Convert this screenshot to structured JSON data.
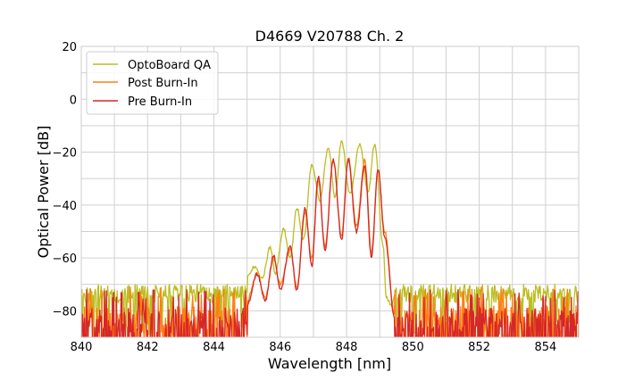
{
  "chart_data": {
    "type": "line",
    "title": "D4669 V20788 Ch. 2",
    "xlabel": "Wavelength [nm]",
    "ylabel": "Optical Power [dB]",
    "xlim": [
      840,
      855
    ],
    "ylim": [
      -90,
      20
    ],
    "x_ticks": [
      "840",
      "842",
      "844",
      "846",
      "848",
      "850",
      "852",
      "854"
    ],
    "y_ticks": [
      "20",
      "0",
      "−20",
      "−40",
      "−60",
      "−80"
    ],
    "grid": true,
    "legend_position": "top-left",
    "series": [
      {
        "name": "OptoBoard QA",
        "color": "#bcbd22",
        "noise_floor": -74,
        "points": [
          [
            845.0,
            -67
          ],
          [
            845.25,
            -63
          ],
          [
            845.45,
            -68
          ],
          [
            845.7,
            -56
          ],
          [
            845.85,
            -66
          ],
          [
            846.1,
            -49
          ],
          [
            846.3,
            -60
          ],
          [
            846.5,
            -41
          ],
          [
            846.7,
            -53
          ],
          [
            846.95,
            -25
          ],
          [
            847.2,
            -38
          ],
          [
            847.45,
            -18
          ],
          [
            847.65,
            -37
          ],
          [
            847.85,
            -16
          ],
          [
            848.1,
            -36
          ],
          [
            848.4,
            -17
          ],
          [
            848.65,
            -35
          ],
          [
            848.85,
            -17
          ],
          [
            849.1,
            -55
          ],
          [
            849.2,
            -75
          ],
          [
            849.35,
            -78
          ],
          [
            849.5,
            -72
          ]
        ]
      },
      {
        "name": "Post Burn-In",
        "color": "#ff7f0e",
        "noise_floor": -82,
        "points": [
          [
            845.0,
            -76
          ],
          [
            845.3,
            -66
          ],
          [
            845.55,
            -75
          ],
          [
            845.8,
            -60
          ],
          [
            846.0,
            -70
          ],
          [
            846.3,
            -57
          ],
          [
            846.5,
            -71
          ],
          [
            846.75,
            -43
          ],
          [
            846.95,
            -60
          ],
          [
            847.15,
            -31
          ],
          [
            847.35,
            -56
          ],
          [
            847.6,
            -23
          ],
          [
            847.85,
            -52
          ],
          [
            848.05,
            -22
          ],
          [
            848.3,
            -48
          ],
          [
            848.55,
            -23
          ],
          [
            848.75,
            -58
          ],
          [
            848.95,
            -27
          ],
          [
            849.15,
            -50
          ],
          [
            849.45,
            -82
          ]
        ]
      },
      {
        "name": "Pre Burn-In",
        "color": "#d62728",
        "noise_floor": -83,
        "points": [
          [
            845.0,
            -78
          ],
          [
            845.3,
            -66
          ],
          [
            845.55,
            -76
          ],
          [
            845.8,
            -59
          ],
          [
            846.0,
            -72
          ],
          [
            846.3,
            -56
          ],
          [
            846.5,
            -72
          ],
          [
            846.75,
            -41
          ],
          [
            846.95,
            -63
          ],
          [
            847.15,
            -29
          ],
          [
            847.35,
            -57
          ],
          [
            847.6,
            -23
          ],
          [
            847.85,
            -53
          ],
          [
            848.05,
            -23
          ],
          [
            848.3,
            -50
          ],
          [
            848.55,
            -25
          ],
          [
            848.75,
            -60
          ],
          [
            848.95,
            -26
          ],
          [
            849.15,
            -52
          ],
          [
            849.45,
            -83
          ]
        ]
      }
    ]
  }
}
